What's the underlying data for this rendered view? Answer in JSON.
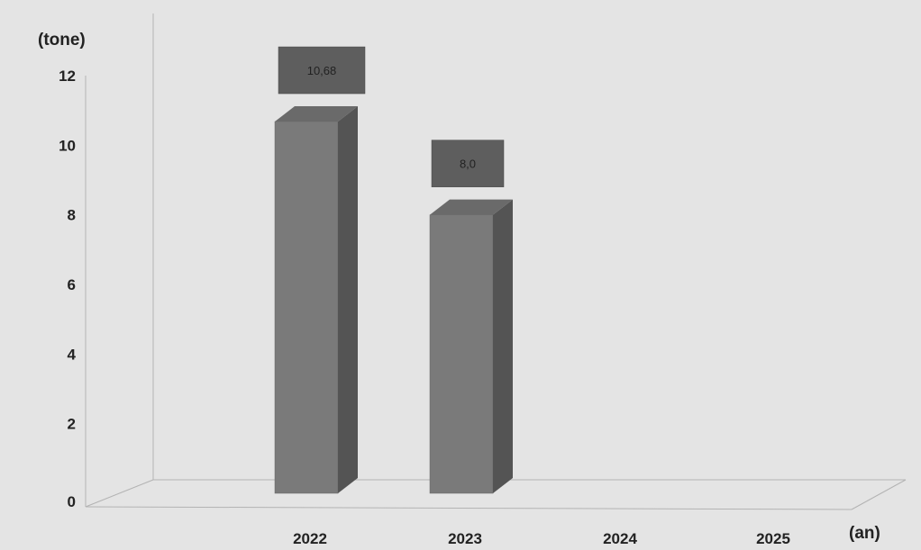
{
  "chart_data": {
    "type": "bar",
    "categories": [
      "2022",
      "2023",
      "2024",
      "2025"
    ],
    "values": [
      10.68,
      8.0,
      null,
      null
    ],
    "data_labels": [
      "10,68",
      "8,0",
      "",
      ""
    ],
    "ylabel": "(tone)",
    "xlabel": "(an)",
    "ylim": [
      0,
      12
    ],
    "yticks": [
      "0",
      "2",
      "4",
      "6",
      "8",
      "10",
      "12"
    ],
    "grid": false,
    "style": "3d-column",
    "colors": {
      "background": "#e4e4e4",
      "bar_front": "#7a7a7a",
      "bar_side": "#545454",
      "bar_top": "#6a6a6a",
      "label_box": "#5e5e5e",
      "axis": "#b3b3b3"
    }
  }
}
